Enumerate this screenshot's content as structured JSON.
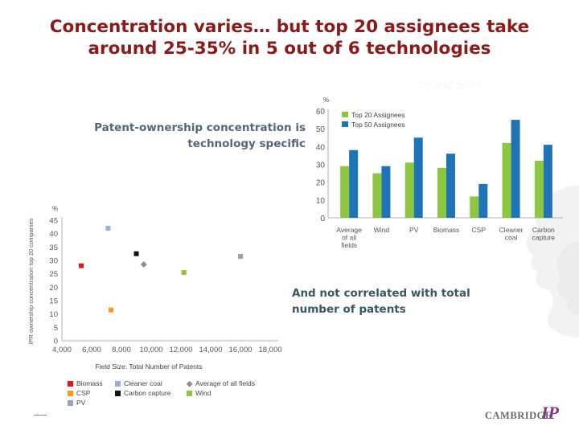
{
  "slide": {
    "title_line1": "Concentration varies… but top 20 assignees take",
    "title_line2": "around 25-35% in 5 out of 6 technologies",
    "ghost_text": "20 and 50 Fi",
    "textbox1_line1": "Patent-ownership concentration is",
    "textbox1_line2": "technology specific",
    "textbox2_line1": "And not correlated with total",
    "textbox2_line2": "number of patents",
    "logo_text": "CAMBRIDGE",
    "logo_ip": "IP"
  },
  "colors": {
    "title": "#8b1a1a",
    "green": "#8dc63f",
    "blue": "#1f73b7",
    "red": "#d71920",
    "lightblue": "#8fb3d9",
    "orange": "#f59a23",
    "black": "#111111",
    "grey": "#8f8f8f",
    "purplegrey": "#9aa0c0"
  },
  "chart_data": [
    {
      "type": "bar",
      "unit_label": "%",
      "categories": [
        [
          "Average",
          "of all",
          "fields"
        ],
        [
          "Wind"
        ],
        [
          "PV"
        ],
        [
          "Biomass"
        ],
        [
          "CSP"
        ],
        [
          "Cleaner",
          "coal"
        ],
        [
          "Carbon",
          "capture"
        ]
      ],
      "series": [
        {
          "name": "Top 20 Assignees",
          "color_key": "green",
          "values": [
            29,
            25,
            31,
            28,
            12,
            42,
            32
          ]
        },
        {
          "name": "Top 50 Assignees",
          "color_key": "blue",
          "values": [
            38,
            29,
            45,
            36,
            19,
            55,
            41
          ]
        }
      ],
      "ylim": [
        0,
        60
      ],
      "yticks": [
        0,
        10,
        20,
        30,
        40,
        50,
        60
      ],
      "legend": "top-left",
      "grid": false
    },
    {
      "type": "scatter",
      "unit_label": "%",
      "xlabel": "Field Size: Total Number of Patents",
      "ylabel": "IPR ownership concentration top 20 companies",
      "xlim": [
        4000,
        18000
      ],
      "ylim": [
        0,
        45
      ],
      "xticks": [
        "4,000",
        "6,000",
        "8,000",
        "10,000",
        "12,000",
        "14,000",
        "16,000",
        "18,000"
      ],
      "yticks": [
        0,
        5,
        10,
        15,
        20,
        25,
        30,
        35,
        40,
        45
      ],
      "points": [
        {
          "name": "Biomass",
          "x": 5300,
          "y": 28,
          "color_key": "red",
          "marker": "square"
        },
        {
          "name": "Cleaner coal",
          "x": 7100,
          "y": 42,
          "color_key": "lightblue",
          "marker": "square"
        },
        {
          "name": "CSP",
          "x": 7300,
          "y": 11.5,
          "color_key": "orange",
          "marker": "square"
        },
        {
          "name": "Carbon capture",
          "x": 9000,
          "y": 32.5,
          "color_key": "black",
          "marker": "square"
        },
        {
          "name": "Average of all fields",
          "x": 9500,
          "y": 28.5,
          "color_key": "grey",
          "marker": "diamond"
        },
        {
          "name": "Wind",
          "x": 12200,
          "y": 25.5,
          "color_key": "green",
          "marker": "square"
        },
        {
          "name": "PV",
          "x": 16000,
          "y": 31.5,
          "color_key": "purplegrey",
          "marker": "square"
        }
      ],
      "legend_items": [
        {
          "label": "Biomass",
          "color_key": "red",
          "marker": "square"
        },
        {
          "label": "Cleaner coal",
          "color_key": "lightblue",
          "marker": "square"
        },
        {
          "label": "Average of all fields",
          "color_key": "grey",
          "marker": "diamond"
        },
        {
          "label": "CSP",
          "color_key": "orange",
          "marker": "square"
        },
        {
          "label": "Carbon capture",
          "color_key": "black",
          "marker": "square"
        },
        {
          "label": "Wind",
          "color_key": "green",
          "marker": "square"
        },
        {
          "label": "PV",
          "color_key": "purplegrey",
          "marker": "square"
        }
      ],
      "legend": "bottom",
      "grid": false
    }
  ]
}
